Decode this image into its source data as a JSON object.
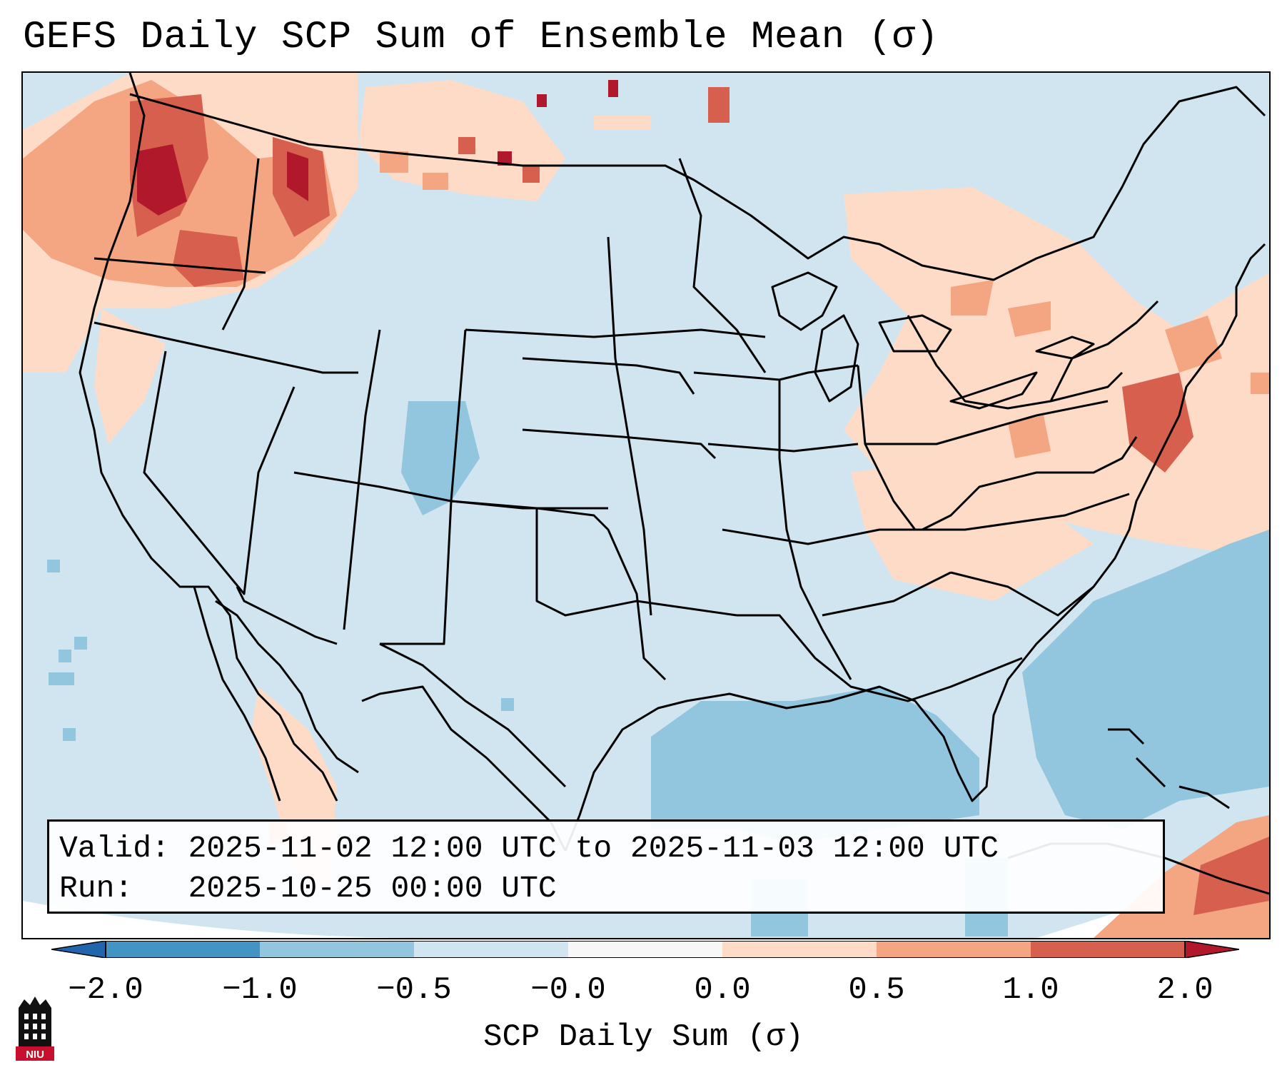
{
  "title": "GEFS Daily SCP Sum of Ensemble Mean (σ)",
  "info": {
    "valid_line": "Valid: 2025-11-02 12:00 UTC to 2025-11-03 12:00 UTC",
    "run_line": "Run:   2025-10-25 00:00 UTC"
  },
  "colorbar": {
    "title": "SCP Daily Sum (σ)",
    "ticks": [
      "−2.0",
      "−1.0",
      "−0.5",
      "−0.0",
      "0.0",
      "0.5",
      "1.0",
      "2.0"
    ],
    "colors": [
      "#4393c3",
      "#92c5de",
      "#d1e5f0",
      "#f7f7f7",
      "#fddbc7",
      "#f4a582",
      "#d6604d"
    ],
    "extend_low": "#2166ac",
    "extend_high": "#b2182b"
  },
  "logo": {
    "text": "NIU"
  }
}
